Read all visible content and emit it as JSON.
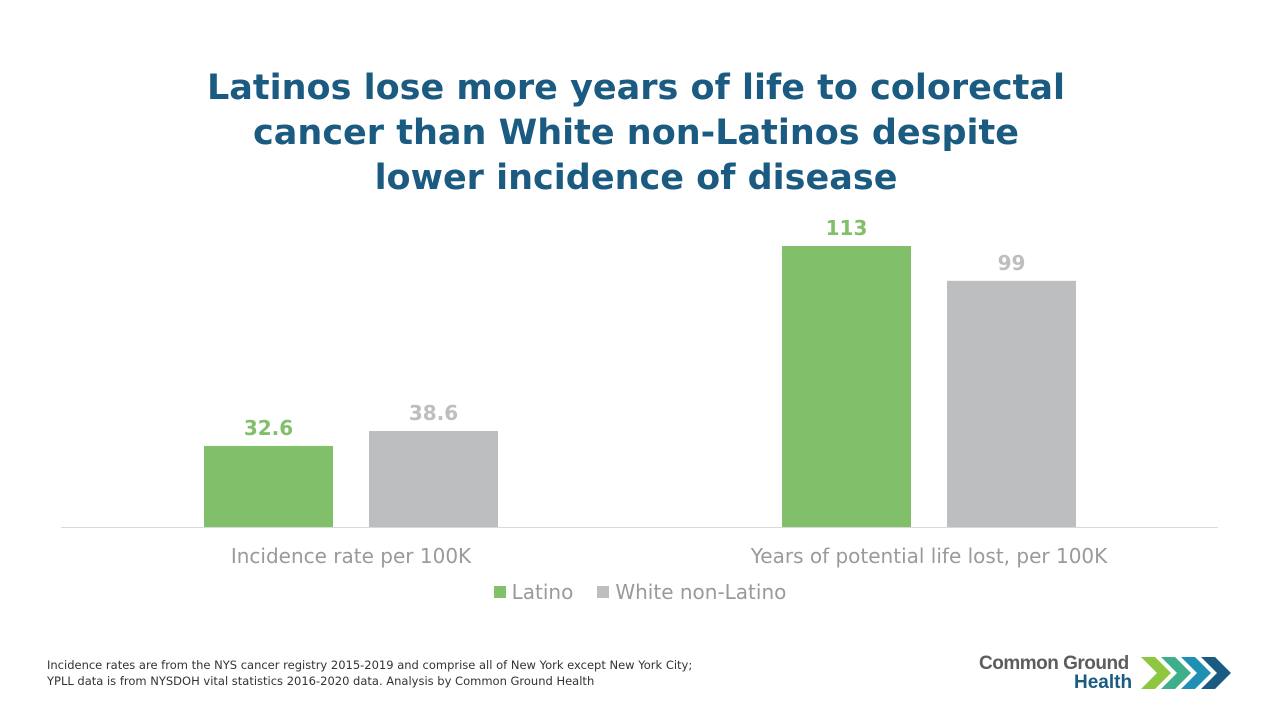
{
  "title": {
    "lines": [
      "Latinos lose more years of life to colorectal",
      "cancer than White non-Latinos despite",
      "lower incidence of disease"
    ]
  },
  "chart_data": {
    "type": "bar",
    "title": "Latinos lose more years of life to colorectal cancer than White non-Latinos despite lower incidence of disease",
    "categories": [
      "Incidence rate per 100K",
      "Years of potential life lost, per 100K"
    ],
    "series": [
      {
        "name": "Latino",
        "color": "#82bf6b",
        "values": [
          32.6,
          113
        ],
        "labels": [
          "32.6",
          "113"
        ]
      },
      {
        "name": "White non-Latino",
        "color": "#bdbec0",
        "values": [
          38.6,
          99
        ],
        "labels": [
          "38.6",
          "99"
        ]
      }
    ],
    "xlabel": "",
    "ylabel": "",
    "ylim": [
      0,
      120
    ],
    "grid": false,
    "legend": "bottom-center"
  },
  "footnote": {
    "line1": "Incidence rates are from the NYS cancer registry 2015-2019 and comprise all of New York except New York City;",
    "line2": "YPLL data is from NYSDOH vital statistics 2016-2020 data. Analysis by Common Ground Health"
  },
  "logo": {
    "line1": "Common Ground",
    "line2": "Health",
    "chevron_colors": [
      "#8dc63f",
      "#3fae8a",
      "#1f8fb3",
      "#1b5b82"
    ]
  }
}
